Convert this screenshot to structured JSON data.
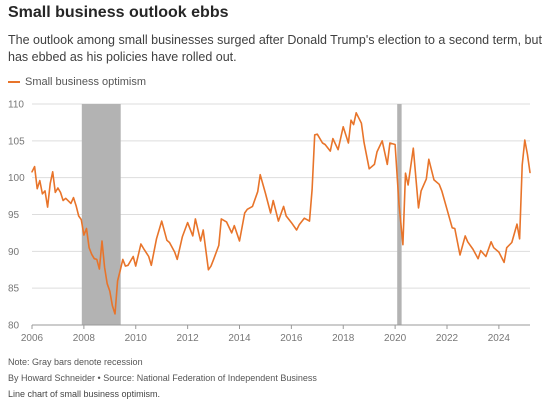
{
  "header": {
    "title": "Small business outlook ebbs",
    "subtitle": "The outlook among small businesses surged after Donald Trump's election to a second term, but has ebbed as his policies have rolled out."
  },
  "footer": {
    "note": "Note: Gray bars denote recession",
    "byline": "By Howard Schneider • Source: National Federation of Independent Business",
    "caption": "Line chart of small business optimism."
  },
  "chart_data": {
    "type": "line",
    "title": "Small business outlook ebbs",
    "xlabel": "",
    "ylabel": "",
    "xlim": [
      2006,
      2025.2
    ],
    "ylim": [
      80,
      110
    ],
    "x_ticks": [
      "2006",
      "2008",
      "2010",
      "2012",
      "2014",
      "2016",
      "2018",
      "2020",
      "2022",
      "2024"
    ],
    "y_ticks": [
      "80",
      "85",
      "90",
      "95",
      "100",
      "105",
      "110"
    ],
    "grid": true,
    "legend": "top-left",
    "colors": {
      "line": "#e8742a",
      "recession": "#b3b3b3",
      "grid": "#dddddd"
    },
    "recessions": [
      [
        2007.92,
        2009.42
      ],
      [
        2020.08,
        2020.25
      ]
    ],
    "series": [
      {
        "name": "Small business optimism",
        "x": [
          2006.0,
          2006.1,
          2006.2,
          2006.3,
          2006.4,
          2006.5,
          2006.6,
          2006.7,
          2006.8,
          2006.9,
          2007.0,
          2007.1,
          2007.2,
          2007.3,
          2007.5,
          2007.6,
          2007.7,
          2007.8,
          2007.9,
          2008.0,
          2008.1,
          2008.2,
          2008.3,
          2008.4,
          2008.5,
          2008.6,
          2008.7,
          2008.8,
          2008.9,
          2009.0,
          2009.1,
          2009.2,
          2009.3,
          2009.4,
          2009.5,
          2009.6,
          2009.7,
          2009.9,
          2010.0,
          2010.2,
          2010.3,
          2010.5,
          2010.6,
          2010.8,
          2011.0,
          2011.2,
          2011.3,
          2011.5,
          2011.6,
          2011.8,
          2012.0,
          2012.2,
          2012.3,
          2012.5,
          2012.6,
          2012.8,
          2012.9,
          2013.0,
          2013.2,
          2013.3,
          2013.5,
          2013.7,
          2013.8,
          2014.0,
          2014.2,
          2014.3,
          2014.5,
          2014.7,
          2014.8,
          2015.0,
          2015.2,
          2015.3,
          2015.5,
          2015.7,
          2015.8,
          2016.0,
          2016.2,
          2016.3,
          2016.5,
          2016.7,
          2016.8,
          2016.9,
          2017.0,
          2017.2,
          2017.3,
          2017.5,
          2017.6,
          2017.8,
          2018.0,
          2018.2,
          2018.3,
          2018.4,
          2018.5,
          2018.7,
          2018.8,
          2019.0,
          2019.2,
          2019.3,
          2019.5,
          2019.7,
          2019.8,
          2020.0,
          2020.15,
          2020.3,
          2020.4,
          2020.5,
          2020.7,
          2020.9,
          2021.0,
          2021.2,
          2021.3,
          2021.5,
          2021.7,
          2021.8,
          2022.0,
          2022.2,
          2022.3,
          2022.5,
          2022.7,
          2022.8,
          2023.0,
          2023.2,
          2023.3,
          2023.5,
          2023.7,
          2023.8,
          2024.0,
          2024.2,
          2024.3,
          2024.5,
          2024.7,
          2024.8,
          2024.9,
          2025.0,
          2025.1,
          2025.2
        ],
        "values": [
          100.8,
          101.5,
          98.5,
          99.6,
          97.8,
          98.2,
          96.0,
          99.2,
          100.8,
          98.0,
          98.6,
          98.0,
          96.9,
          97.2,
          96.5,
          97.3,
          96.2,
          94.8,
          94.3,
          92.2,
          93.1,
          90.5,
          89.6,
          89.0,
          88.9,
          87.6,
          91.4,
          87.8,
          85.6,
          84.6,
          82.6,
          81.5,
          86.0,
          87.4,
          88.9,
          88.0,
          88.1,
          89.3,
          88.0,
          91.0,
          90.4,
          89.3,
          88.1,
          91.7,
          94.1,
          91.5,
          91.2,
          89.9,
          88.9,
          92.0,
          93.9,
          92.1,
          94.4,
          91.4,
          92.9,
          87.5,
          88.0,
          88.9,
          90.8,
          94.4,
          94.0,
          92.5,
          93.5,
          91.4,
          95.2,
          95.7,
          96.1,
          98.1,
          100.4,
          97.9,
          95.2,
          96.9,
          94.1,
          96.1,
          94.8,
          93.9,
          92.9,
          93.6,
          94.5,
          94.1,
          98.4,
          105.8,
          105.9,
          104.7,
          104.5,
          103.6,
          105.3,
          103.8,
          106.9,
          104.7,
          107.8,
          107.2,
          108.8,
          107.4,
          104.8,
          101.2,
          101.8,
          103.5,
          105.0,
          101.8,
          104.7,
          104.5,
          96.4,
          90.9,
          100.6,
          99.0,
          104.0,
          95.9,
          98.2,
          99.8,
          102.5,
          99.7,
          99.1,
          98.2,
          95.7,
          93.2,
          93.1,
          89.5,
          92.1,
          91.3,
          90.3,
          89.0,
          90.1,
          89.3,
          91.3,
          90.5,
          89.9,
          88.5,
          90.5,
          91.2,
          93.7,
          91.7,
          101.7,
          105.1,
          103.2,
          100.7
        ]
      }
    ]
  }
}
